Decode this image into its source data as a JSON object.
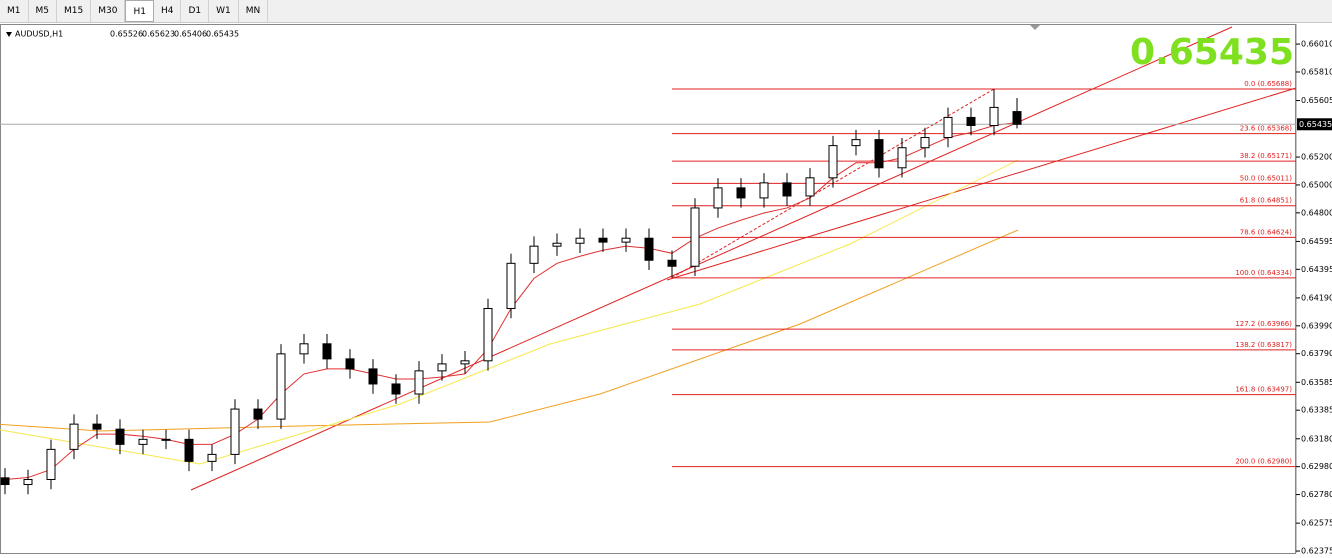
{
  "chart_data": {
    "type": "candlestick",
    "tabs": [
      "M1",
      "M5",
      "M15",
      "M30",
      "H1",
      "H4",
      "D1",
      "W1",
      "MN"
    ],
    "active_tab": 4,
    "symbol": "AUDUSD,H1",
    "ylim": [
      0.62361,
      0.66154
    ],
    "yticks": [
      {
        "value": 0.6601,
        "label": "0.66010"
      },
      {
        "value": 0.6581,
        "label": "0.65810"
      },
      0.65605,
      {
        "value": 0.652,
        "label": "0.65200"
      },
      {
        "value": 0.65,
        "label": "0.65000"
      },
      {
        "value": 0.648,
        "label": "0.64800"
      },
      0.64595,
      0.64395,
      {
        "value": 0.6419,
        "label": "0.64190"
      },
      {
        "value": 0.6399,
        "label": "0.63990"
      },
      {
        "value": 0.6379,
        "label": "0.63790"
      },
      0.63585,
      0.63385,
      {
        "value": 0.6318,
        "label": "0.63180"
      },
      {
        "value": 0.6298,
        "label": "0.62980"
      },
      {
        "value": 0.6278,
        "label": "0.62780"
      },
      0.62575,
      0.62375
    ],
    "open": [
      0.629,
      0.62852,
      0.62888,
      0.63104,
      0.63285,
      0.63249,
      0.6314,
      0.63176,
      0.63176,
      0.63018,
      0.63068,
      0.63393,
      0.63321,
      0.63789,
      0.63861,
      0.63753,
      0.63681,
      0.63573,
      0.63501,
      0.63667,
      0.63717,
      0.63739,
      0.64114,
      0.64438,
      0.64561,
      0.64582,
      0.64618,
      0.6459,
      0.64618,
      0.6446,
      0.64417,
      0.64835,
      0.64979,
      0.64907,
      0.65015,
      0.64921,
      0.65051,
      0.65282,
      0.65325,
      0.65123,
      0.65267,
      0.6534,
      0.65484,
      0.65426,
      0.65526
    ],
    "high": [
      0.6297,
      0.62958,
      0.63174,
      0.63355,
      0.63355,
      0.63319,
      0.63246,
      0.63246,
      0.63246,
      0.63138,
      0.63463,
      0.63463,
      0.63859,
      0.63931,
      0.63931,
      0.63823,
      0.63751,
      0.63643,
      0.63737,
      0.63787,
      0.63809,
      0.64184,
      0.64508,
      0.64631,
      0.64652,
      0.64688,
      0.64688,
      0.64688,
      0.64688,
      0.6453,
      0.64905,
      0.65049,
      0.65049,
      0.65085,
      0.65085,
      0.65121,
      0.65352,
      0.65395,
      0.65395,
      0.65337,
      0.6541,
      0.65554,
      0.65554,
      0.65688,
      0.65623
    ],
    "low": [
      0.62782,
      0.62782,
      0.62818,
      0.63034,
      0.63179,
      0.6307,
      0.6307,
      0.63106,
      0.62948,
      0.62948,
      0.62998,
      0.63251,
      0.63251,
      0.63719,
      0.63683,
      0.63611,
      0.63503,
      0.63431,
      0.63431,
      0.63597,
      0.63647,
      0.63669,
      0.64044,
      0.64368,
      0.64491,
      0.64512,
      0.6452,
      0.6452,
      0.6439,
      0.64334,
      0.64347,
      0.64765,
      0.64837,
      0.64837,
      0.64851,
      0.64851,
      0.64981,
      0.65212,
      0.65053,
      0.65053,
      0.65197,
      0.6527,
      0.65356,
      0.65356,
      0.65406
    ],
    "close": [
      0.62852,
      0.62888,
      0.63104,
      0.63285,
      0.63249,
      0.6314,
      0.63176,
      0.63176,
      0.63018,
      0.63068,
      0.63393,
      0.63321,
      0.63789,
      0.63861,
      0.63753,
      0.63681,
      0.63573,
      0.63501,
      0.63667,
      0.63717,
      0.63739,
      0.64114,
      0.64438,
      0.64561,
      0.64582,
      0.64618,
      0.6459,
      0.64618,
      0.6446,
      0.64417,
      0.64835,
      0.64979,
      0.64907,
      0.65015,
      0.64921,
      0.65051,
      0.65282,
      0.65325,
      0.65123,
      0.65267,
      0.6534,
      0.65484,
      0.65426,
      0.65556,
      0.65435
    ],
    "moving_average": {
      "color": "#e03030",
      "values": [
        0.62888,
        0.62902,
        0.6296,
        0.63104,
        0.63213,
        0.63213,
        0.63198,
        0.63176,
        0.6314,
        0.6314,
        0.63213,
        0.63321,
        0.63501,
        0.63645,
        0.63681,
        0.63681,
        0.63645,
        0.63609,
        0.63609,
        0.63623,
        0.63645,
        0.63825,
        0.64114,
        0.6433,
        0.64438,
        0.64489,
        0.64532,
        0.64561,
        0.64546,
        0.6451,
        0.64618,
        0.64691,
        0.64748,
        0.64799,
        0.64835,
        0.64907,
        0.65051,
        0.65159,
        0.65159,
        0.65195,
        0.65267,
        0.6534,
        0.65376,
        0.65426,
        0.65448
      ]
    },
    "fib_start": 29,
    "fib_color": "#e02020",
    "fib_levels": [
      {
        "value": 0.65688,
        "label": "0.0 (0.65688)"
      },
      {
        "value": 0.65368,
        "label": "23.6 (0.65368)"
      },
      {
        "value": 0.65171,
        "label": "38.2 (0.65171)"
      },
      {
        "value": 0.65011,
        "label": "50.0 (0.65011)"
      },
      {
        "value": 0.64851,
        "label": "61.8 (0.64851)"
      },
      {
        "value": 0.64624,
        "label": "78.6 (0.64624)"
      },
      {
        "value": 0.64334,
        "label": "100.0 (0.64334)"
      },
      {
        "value": 0.63966,
        "label": "127.2 (0.63966)"
      },
      {
        "value": 0.63817,
        "label": "138.2 (0.63817)"
      },
      {
        "value": 0.63497,
        "label": "161.8 (0.63497)"
      },
      {
        "value": 0.6298,
        "label": "200.0 (0.62980)"
      }
    ]
  }
}
